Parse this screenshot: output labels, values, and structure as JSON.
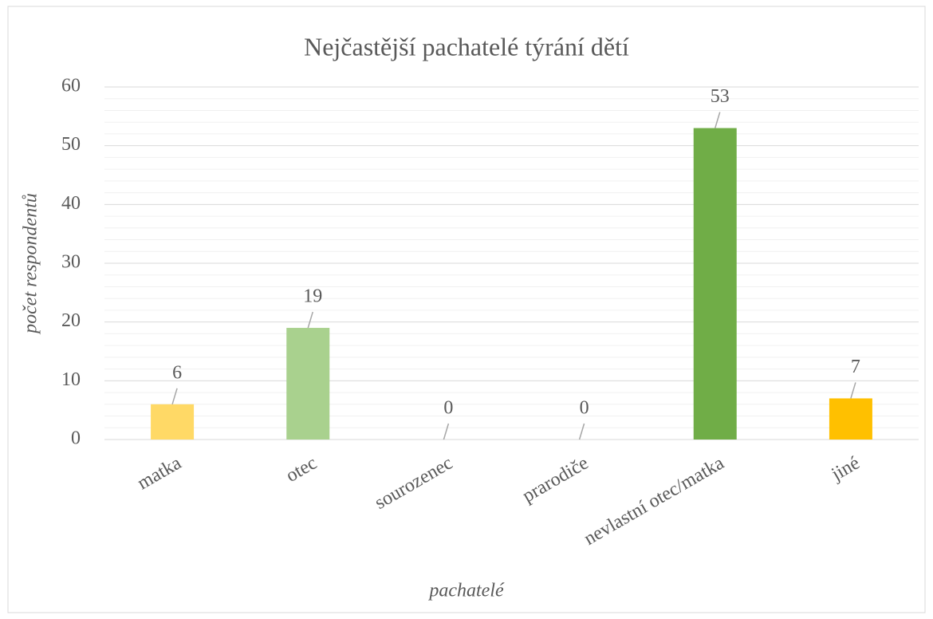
{
  "chart_data": {
    "type": "bar",
    "title": "Nejčastější pachatelé týrání dětí",
    "x_label": "pachatelé",
    "y_label": "počet respondentů",
    "categories": [
      "matka",
      "otec",
      "sourozenec",
      "prarodiče",
      "nevlastní otec/matka",
      "jiné"
    ],
    "values": [
      6,
      19,
      0,
      0,
      53,
      7
    ],
    "colors": [
      "#ffd966",
      "#a9d18e",
      "#c5e0b4",
      "#ffe699",
      "#70ad47",
      "#ffc000"
    ],
    "ylim": [
      0,
      60
    ],
    "yticks": [
      0,
      10,
      20,
      30,
      40,
      50,
      60
    ],
    "minor_yticks": [
      2,
      4,
      6,
      8,
      12,
      14,
      16,
      18,
      22,
      24,
      26,
      28,
      32,
      34,
      36,
      38,
      42,
      44,
      46,
      48,
      52,
      54,
      56,
      58
    ],
    "grid": true
  }
}
